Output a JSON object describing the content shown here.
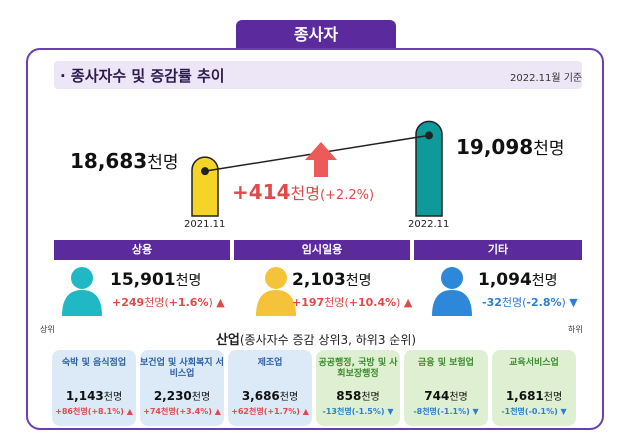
{
  "section_tab": "종사자",
  "headline": "종사자수 및 증감률 추이",
  "basis": "2022.11월 기준",
  "colors": {
    "purple": "#5b2b9e",
    "increase": "#e04a4a",
    "decrease": "#2d7ecf",
    "cylinder_2021": "#f5d327",
    "cylinder_2022": "#0f9a9a",
    "arrow": "#ec5a5a"
  },
  "chart_data": {
    "type": "bar",
    "categories": [
      "2021.11",
      "2022.11"
    ],
    "values": [
      18683,
      19098
    ],
    "value_labels": [
      "18,683",
      "19,098"
    ],
    "unit": "천명",
    "change": {
      "value": "+414",
      "unit": "천명",
      "pct": "(+2.2%)"
    }
  },
  "categories": [
    {
      "label": "상용",
      "value": "15,901",
      "unit": "천명",
      "change": "+249",
      "change_unit": "천명",
      "pct_open": "(",
      "pct": "+1.6%",
      "pct_close": ")",
      "direction": "up",
      "person_color": "#1fb8c4"
    },
    {
      "label": "임시일용",
      "value": "2,103",
      "unit": "천명",
      "change": "+197",
      "change_unit": "천명",
      "pct_open": "(",
      "pct": "+10.4%",
      "pct_close": ")",
      "direction": "up",
      "person_color": "#f5c33a"
    },
    {
      "label": "기타",
      "value": "1,094",
      "unit": "천명",
      "change": "-32",
      "change_unit": "천명",
      "pct_open": "(",
      "pct": "-2.8%",
      "pct_close": ")",
      "direction": "down",
      "person_color": "#2d88d9"
    }
  ],
  "industry": {
    "title": "산업",
    "subtitle": "(종사자수 증감 상위3, 하위3 순위)",
    "rank_top": "상위",
    "rank_bottom": "하위",
    "cards": [
      {
        "name": "숙박 및 음식점업",
        "value": "1,143",
        "unit": "천명",
        "change": "+86천명(+8.1%)",
        "direction": "up",
        "tone": "blue"
      },
      {
        "name": "보건업 및 사회복지 서비스업",
        "value": "2,230",
        "unit": "천명",
        "change": "+74천명(+3.4%)",
        "direction": "up",
        "tone": "blue"
      },
      {
        "name": "제조업",
        "value": "3,686",
        "unit": "천명",
        "change": "+62천명(+1.7%)",
        "direction": "up",
        "tone": "blue"
      },
      {
        "name": "공공행정, 국방 및 사회보장행정",
        "value": "858",
        "unit": "천명",
        "change": "-13천명(-1.5%)",
        "direction": "down",
        "tone": "green"
      },
      {
        "name": "금융 및 보험업",
        "value": "744",
        "unit": "천명",
        "change": "-8천명(-1.1%)",
        "direction": "down",
        "tone": "green"
      },
      {
        "name": "교육서비스업",
        "value": "1,681",
        "unit": "천명",
        "change": "-1천명(-0.1%)",
        "direction": "down",
        "tone": "green"
      }
    ]
  }
}
